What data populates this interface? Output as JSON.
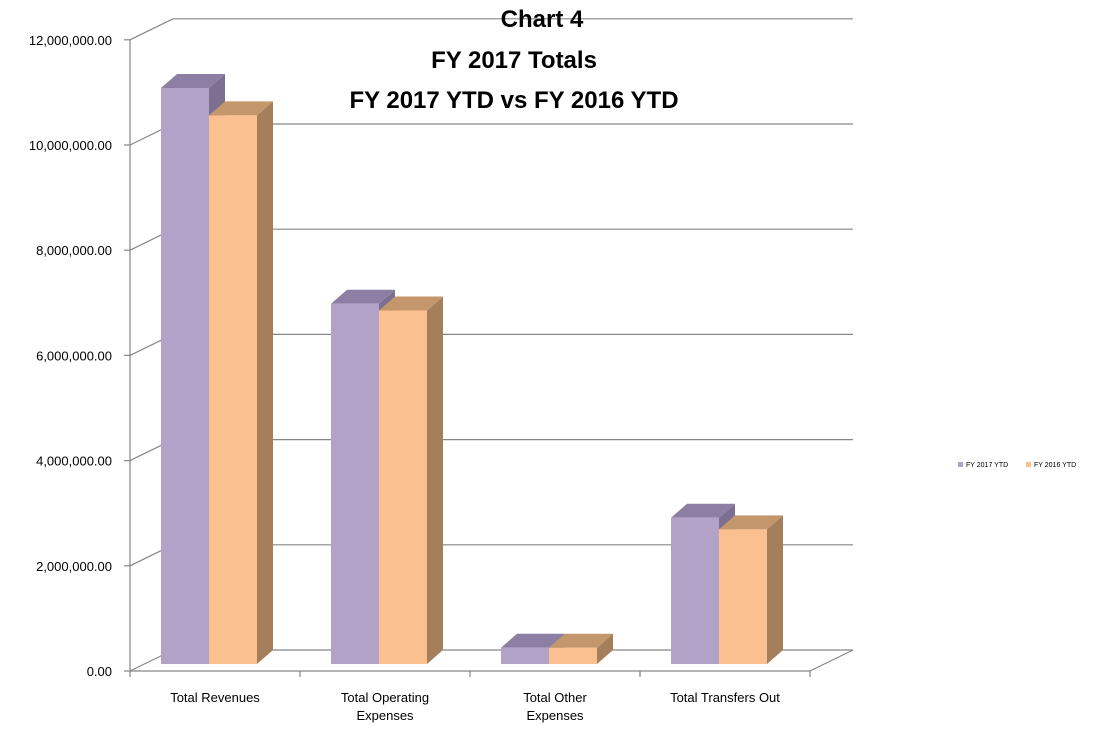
{
  "chart_data": {
    "type": "bar",
    "title_lines": [
      "Chart 4",
      "FY 2017 Totals",
      "FY 2017 YTD vs FY 2016 YTD"
    ],
    "categories": [
      [
        "Total Revenues"
      ],
      [
        "Total Operating",
        "Expenses"
      ],
      [
        "Total Other",
        "Expenses"
      ],
      [
        "Total Transfers Out"
      ]
    ],
    "series": [
      {
        "name": "FY 2017 YTD",
        "values": [
          10950000,
          6850000,
          310000,
          2780000
        ],
        "color": "#b3a2c7",
        "side_color": "#7c6f91",
        "top_color": "#8d7fa3"
      },
      {
        "name": "FY 2016 YTD",
        "values": [
          10430000,
          6720000,
          310000,
          2560000
        ],
        "color": "#fac090",
        "side_color": "#a57f5b",
        "top_color": "#c4966b"
      }
    ],
    "y_ticks": [
      "0.00",
      "2,000,000.00",
      "4,000,000.00",
      "6,000,000.00",
      "8,000,000.00",
      "10,000,000.00",
      "12,000,000.00"
    ],
    "ylim": [
      0,
      12000000
    ],
    "grid": true,
    "legend_position": "right"
  }
}
